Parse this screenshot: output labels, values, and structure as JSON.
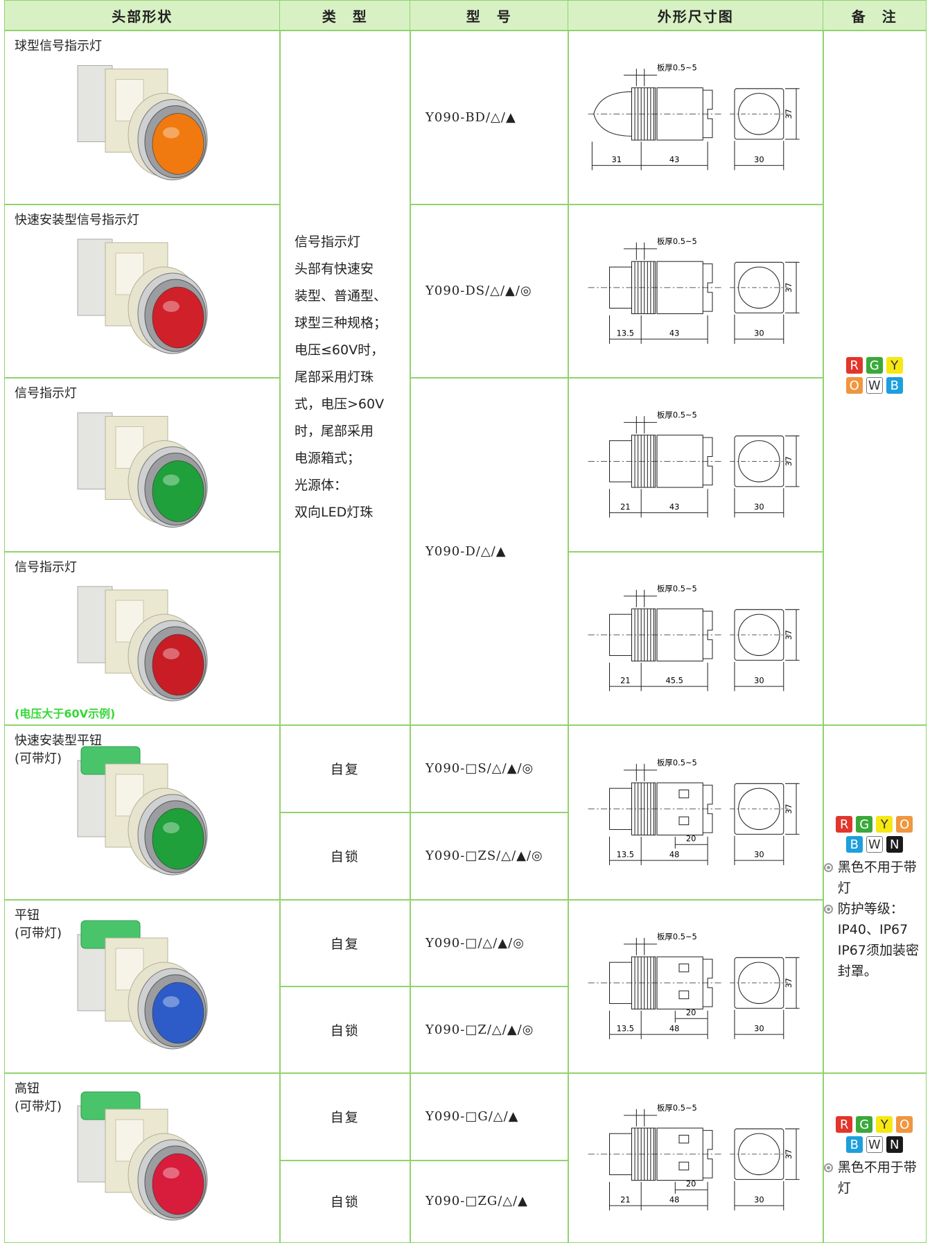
{
  "table": {
    "header": [
      "头部形状",
      "类　型",
      "型　号",
      "外形尺寸图",
      "备　注"
    ],
    "heads": [
      {
        "lines": [
          "球型信号指示灯"
        ]
      },
      {
        "lines": [
          "快速安装型信号指示灯"
        ]
      },
      {
        "lines": [
          "信号指示灯"
        ]
      },
      {
        "lines": [
          "信号指示灯"
        ],
        "note": "(电压大于60V示例)"
      },
      {
        "lines": [
          "快速安装型平钮",
          "(可带灯)"
        ]
      },
      {
        "lines": [
          "平钮",
          "(可带灯)"
        ]
      },
      {
        "lines": [
          "高钮",
          "(可带灯)"
        ]
      }
    ],
    "types": [
      [
        "信号指示灯",
        "头部有快速安",
        "装型、普通型、",
        "球型三种规格；",
        "电压≤60V时，",
        "尾部采用灯珠",
        "式，电压>60V",
        "时，尾部采用",
        "电源箱式；",
        "光源体：",
        "双向LED灯珠"
      ],
      [
        "自复"
      ],
      [
        "自锁"
      ],
      [
        "自复"
      ],
      [
        "自锁"
      ],
      [
        "自复"
      ],
      [
        "自锁"
      ]
    ],
    "models": [
      "Y090-BD/△/▲",
      "Y090-DS/△/▲/◎",
      "Y090-D/△/▲",
      "Y090-□S/△/▲/◎",
      "Y090-□ZS/△/▲/◎",
      "Y090-□/△/▲/◎",
      "Y090-□Z/△/▲/◎",
      "Y090-□G/△/▲",
      "Y090-□ZG/△/▲"
    ],
    "drawings": [
      {
        "plate": "板厚0.5~5",
        "front": [
          31,
          43
        ],
        "width": 30,
        "height": 37
      },
      {
        "plate": "板厚0.5~5",
        "front": [
          13.5,
          43
        ],
        "width": 30,
        "height": 37
      },
      {
        "plate": "板厚0.5~5",
        "front": [
          21,
          43
        ],
        "width": 30,
        "height": 37
      },
      {
        "plate": "板厚0.5~5",
        "front": [
          21,
          45.5
        ],
        "width": 30,
        "height": 37
      },
      {
        "plate": "板厚0.5~5",
        "front": [
          13.5,
          48
        ],
        "depth": 20,
        "width": 30,
        "height": 37
      },
      {
        "plate": "板厚0.5~5",
        "front": [
          13.5,
          48
        ],
        "depth": 20,
        "width": 30,
        "height": 37
      },
      {
        "plate": "板厚0.5~5",
        "front": [
          21,
          48
        ],
        "depth": 20,
        "width": 30,
        "height": 37
      }
    ],
    "remarks": [
      {
        "badges": [
          {
            "letter": "R",
            "color": "#e2352b"
          },
          {
            "letter": "G",
            "color": "#3aa93a"
          },
          {
            "letter": "Y",
            "color": "#f6e812"
          },
          {
            "letter": "O",
            "color": "#f0963e"
          },
          {
            "letter": "W",
            "color": "#ffffff"
          },
          {
            "letter": "B",
            "color": "#1d9fdc"
          }
        ]
      },
      {
        "badges": [
          {
            "letter": "R",
            "color": "#e2352b"
          },
          {
            "letter": "G",
            "color": "#3aa93a"
          },
          {
            "letter": "Y",
            "color": "#f6e812"
          },
          {
            "letter": "O",
            "color": "#f0963e"
          },
          {
            "letter": "B",
            "color": "#1d9fdc"
          },
          {
            "letter": "W",
            "color": "#ffffff"
          },
          {
            "letter": "N",
            "color": "#1a1a1a"
          }
        ],
        "notes": [
          "黑色不用于带灯",
          "防护等级：IP40、IP67 IP67须加装密封罩。"
        ]
      },
      {
        "badges": [
          {
            "letter": "R",
            "color": "#e2352b"
          },
          {
            "letter": "G",
            "color": "#3aa93a"
          },
          {
            "letter": "Y",
            "color": "#f6e812"
          },
          {
            "letter": "O",
            "color": "#f0963e"
          },
          {
            "letter": "B",
            "color": "#1d9fdc"
          },
          {
            "letter": "W",
            "color": "#ffffff"
          },
          {
            "letter": "N",
            "color": "#1a1a1a"
          }
        ],
        "notes": [
          "黑色不用于带灯"
        ]
      }
    ]
  }
}
